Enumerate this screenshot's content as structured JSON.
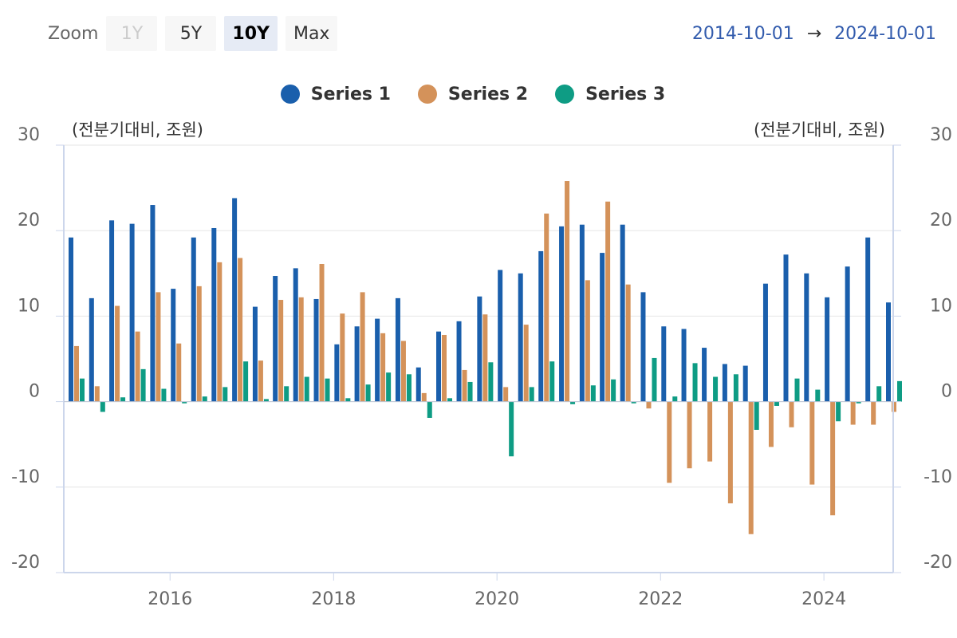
{
  "toolbar": {
    "zoom_label": "Zoom",
    "buttons": [
      "1Y",
      "5Y",
      "10Y",
      "Max"
    ],
    "active": "10Y",
    "disabled": "1Y"
  },
  "range": {
    "from": "2014-10-01",
    "arrow": "→",
    "to": "2024-10-01"
  },
  "colors": {
    "series1": "#1a5fac",
    "series2": "#d4925a",
    "series3": "#0e9c84",
    "grid": "#e6e6e6",
    "axis": "#ccd6eb"
  },
  "chart_data": {
    "type": "bar",
    "y_unit_left": "(전분기대비, 조원)",
    "y_unit_right": "(전분기대비, 조원)",
    "ylim": [
      -20,
      30
    ],
    "yticks": [
      30,
      20,
      10,
      0,
      -10,
      -20
    ],
    "xticks": [
      "2016",
      "2018",
      "2020",
      "2022",
      "2024"
    ],
    "x_start": "2014-10-01",
    "x_end": "2024-10-01",
    "legend_position": "top-center",
    "categories": [
      "2014Q4",
      "2015Q1",
      "2015Q2",
      "2015Q3",
      "2015Q4",
      "2016Q1",
      "2016Q2",
      "2016Q3",
      "2016Q4",
      "2017Q1",
      "2017Q2",
      "2017Q3",
      "2017Q4",
      "2018Q1",
      "2018Q2",
      "2018Q3",
      "2018Q4",
      "2019Q1",
      "2019Q2",
      "2019Q3",
      "2019Q4",
      "2020Q1",
      "2020Q2",
      "2020Q3",
      "2020Q4",
      "2021Q1",
      "2021Q2",
      "2021Q3",
      "2021Q4",
      "2022Q1",
      "2022Q2",
      "2022Q3",
      "2022Q4",
      "2023Q1",
      "2023Q2",
      "2023Q3",
      "2023Q4",
      "2024Q1",
      "2024Q2",
      "2024Q3",
      "2024Q4"
    ],
    "series": [
      {
        "name": "Series 1",
        "values": [
          19.2,
          12.1,
          21.2,
          20.8,
          23.0,
          13.2,
          19.2,
          20.3,
          23.8,
          11.1,
          14.7,
          15.6,
          12.0,
          6.7,
          8.8,
          9.7,
          12.1,
          4.0,
          8.2,
          9.4,
          12.3,
          15.4,
          15.0,
          17.6,
          20.5,
          20.7,
          17.4,
          20.7,
          12.8,
          8.8,
          8.5,
          6.3,
          4.4,
          4.2,
          13.8,
          17.2,
          15.0,
          12.2,
          15.8,
          19.2,
          11.6
        ]
      },
      {
        "name": "Series 2",
        "values": [
          6.5,
          1.8,
          11.2,
          8.2,
          12.8,
          6.8,
          13.5,
          16.3,
          16.8,
          4.8,
          11.9,
          12.2,
          16.1,
          10.3,
          12.8,
          8.0,
          7.1,
          1.0,
          7.8,
          3.7,
          10.2,
          1.7,
          9.0,
          22.0,
          25.8,
          14.2,
          23.4,
          13.7,
          -0.8,
          -9.5,
          -7.8,
          -7.0,
          -11.9,
          -15.5,
          -5.3,
          -3.0,
          -9.7,
          -13.3,
          -2.7,
          -2.7,
          -1.2
        ]
      },
      {
        "name": "Series 3",
        "values": [
          2.7,
          -1.2,
          0.5,
          3.8,
          1.5,
          -0.2,
          0.6,
          1.7,
          4.7,
          0.3,
          1.8,
          2.9,
          2.7,
          0.4,
          2.0,
          3.4,
          3.2,
          -1.9,
          0.4,
          2.3,
          4.6,
          -6.4,
          1.7,
          4.7,
          -0.3,
          1.9,
          2.6,
          -0.2,
          5.1,
          0.6,
          4.5,
          2.9,
          3.2,
          -3.3,
          -0.5,
          2.7,
          1.4,
          -2.3,
          -0.2,
          1.8,
          2.4
        ]
      }
    ]
  }
}
